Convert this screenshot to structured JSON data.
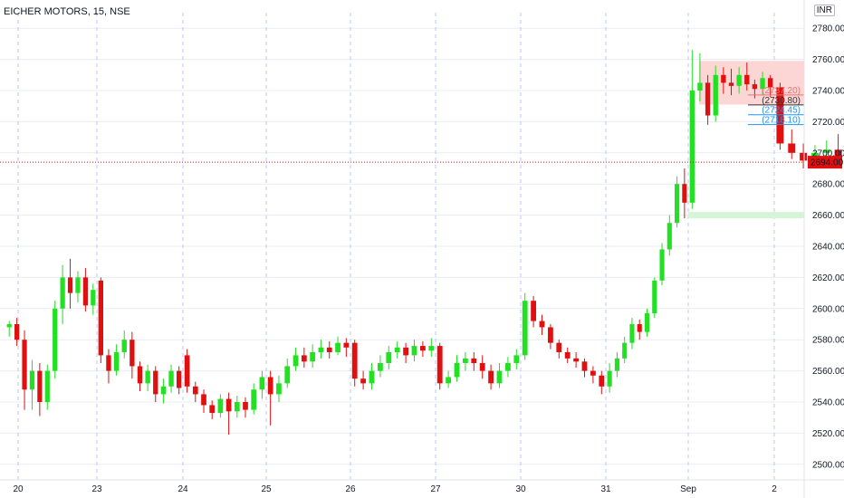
{
  "header": {
    "title": "EICHER MOTORS, 15, NSE",
    "currency": "INR"
  },
  "chart_data": {
    "type": "candlestick",
    "ylim": [
      2490,
      2790
    ],
    "yticks": [
      2500,
      2520,
      2540,
      2560,
      2580,
      2600,
      2620,
      2640,
      2660,
      2680,
      2700,
      2720,
      2740,
      2760,
      2780
    ],
    "xticks": [
      "20",
      "23",
      "24",
      "25",
      "26",
      "27",
      "30",
      "31",
      "Sep",
      "2"
    ],
    "last_price": 2694.0,
    "last_price_label": "2694.00",
    "colors": {
      "up": "#22e022",
      "down": "#e01010",
      "grid": "#e9ecf2",
      "day_sep": "#b8c4ff",
      "price_line": "#e01010"
    },
    "zones": [
      {
        "kind": "supply",
        "from": 2731,
        "to": 2759,
        "color": "#fcd5d5"
      },
      {
        "kind": "demand",
        "from": 2658,
        "to": 2662,
        "color": "#d6f5d6"
      }
    ],
    "levels": [
      {
        "label": "(2737.20)",
        "value": 2737.2,
        "color": "#e57373"
      },
      {
        "label": "(2730.80)",
        "value": 2730.8,
        "color": "#333333"
      },
      {
        "label": "(2724.45)",
        "value": 2724.45,
        "color": "#2196f3"
      },
      {
        "label": "(2718.10)",
        "value": 2718.1,
        "color": "#2196f3"
      }
    ],
    "days": [
      {
        "label": "20",
        "candles": [
          [
            2588,
            2590,
            2582,
            2592
          ],
          [
            2590,
            2580,
            2576,
            2594
          ],
          [
            2580,
            2548,
            2535,
            2586
          ],
          [
            2548,
            2560,
            2535,
            2567
          ],
          [
            2560,
            2540,
            2531,
            2565
          ],
          [
            2540,
            2560,
            2535,
            2564
          ],
          [
            2560,
            2600,
            2555,
            2605
          ],
          [
            2600,
            2620,
            2590,
            2628
          ],
          [
            2620,
            2610,
            2600,
            2632
          ],
          [
            2610,
            2620,
            2604,
            2624
          ],
          [
            2620,
            2602,
            2598,
            2626
          ],
          [
            2602,
            2612,
            2596,
            2616
          ]
        ]
      },
      {
        "label": "23",
        "candles": [
          [
            2618,
            2570,
            2565,
            2620
          ],
          [
            2570,
            2560,
            2552,
            2574
          ],
          [
            2560,
            2572,
            2557,
            2577
          ],
          [
            2572,
            2580,
            2568,
            2586
          ],
          [
            2580,
            2563,
            2555,
            2585
          ],
          [
            2563,
            2552,
            2547,
            2566
          ],
          [
            2552,
            2560,
            2547,
            2564
          ],
          [
            2560,
            2545,
            2540,
            2563
          ],
          [
            2545,
            2550,
            2539,
            2555
          ],
          [
            2550,
            2560,
            2546,
            2564
          ],
          [
            2560,
            2549,
            2545,
            2563
          ]
        ]
      },
      {
        "label": "24",
        "candles": [
          [
            2570,
            2550,
            2546,
            2574
          ],
          [
            2550,
            2545,
            2540,
            2553
          ],
          [
            2545,
            2538,
            2533,
            2548
          ],
          [
            2538,
            2533,
            2529,
            2541
          ],
          [
            2533,
            2542,
            2530,
            2545
          ],
          [
            2542,
            2534,
            2519,
            2546
          ],
          [
            2534,
            2540,
            2530,
            2544
          ],
          [
            2540,
            2535,
            2530,
            2543
          ],
          [
            2535,
            2548,
            2532,
            2552
          ],
          [
            2548,
            2556,
            2542,
            2560
          ]
        ]
      },
      {
        "label": "25",
        "candles": [
          [
            2556,
            2545,
            2525,
            2560
          ],
          [
            2545,
            2552,
            2540,
            2557
          ],
          [
            2552,
            2563,
            2549,
            2568
          ],
          [
            2563,
            2570,
            2560,
            2575
          ],
          [
            2570,
            2566,
            2562,
            2575
          ],
          [
            2566,
            2572,
            2562,
            2577
          ],
          [
            2572,
            2575,
            2568,
            2580
          ],
          [
            2575,
            2572,
            2568,
            2579
          ],
          [
            2572,
            2578,
            2570,
            2582
          ],
          [
            2578,
            2575,
            2569,
            2581
          ]
        ]
      },
      {
        "label": "26",
        "candles": [
          [
            2578,
            2555,
            2550,
            2580
          ],
          [
            2555,
            2552,
            2548,
            2560
          ],
          [
            2552,
            2560,
            2548,
            2565
          ],
          [
            2560,
            2565,
            2556,
            2570
          ],
          [
            2565,
            2572,
            2561,
            2576
          ],
          [
            2572,
            2575,
            2568,
            2579
          ],
          [
            2575,
            2570,
            2565,
            2578
          ],
          [
            2570,
            2576,
            2566,
            2580
          ],
          [
            2576,
            2573,
            2569,
            2579
          ],
          [
            2573,
            2576,
            2569,
            2581
          ]
        ]
      },
      {
        "label": "27",
        "candles": [
          [
            2576,
            2552,
            2548,
            2578
          ],
          [
            2552,
            2556,
            2549,
            2560
          ],
          [
            2556,
            2565,
            2553,
            2570
          ],
          [
            2565,
            2568,
            2560,
            2572
          ],
          [
            2568,
            2565,
            2560,
            2572
          ],
          [
            2565,
            2560,
            2555,
            2570
          ],
          [
            2560,
            2552,
            2548,
            2564
          ],
          [
            2552,
            2560,
            2549,
            2565
          ],
          [
            2560,
            2565,
            2556,
            2569
          ],
          [
            2565,
            2570,
            2561,
            2574
          ]
        ]
      },
      {
        "label": "30",
        "candles": [
          [
            2570,
            2605,
            2567,
            2610
          ],
          [
            2605,
            2592,
            2588,
            2608
          ],
          [
            2592,
            2588,
            2583,
            2596
          ],
          [
            2588,
            2578,
            2574,
            2590
          ],
          [
            2578,
            2572,
            2568,
            2580
          ],
          [
            2572,
            2568,
            2565,
            2575
          ],
          [
            2568,
            2566,
            2562,
            2572
          ],
          [
            2566,
            2560,
            2556,
            2568
          ],
          [
            2560,
            2557,
            2552,
            2563
          ],
          [
            2557,
            2550,
            2545,
            2560
          ]
        ]
      },
      {
        "label": "31",
        "candles": [
          [
            2550,
            2560,
            2546,
            2565
          ],
          [
            2560,
            2568,
            2556,
            2572
          ],
          [
            2568,
            2578,
            2565,
            2582
          ],
          [
            2578,
            2590,
            2574,
            2594
          ],
          [
            2590,
            2585,
            2580,
            2593
          ],
          [
            2585,
            2597,
            2582,
            2600
          ],
          [
            2597,
            2618,
            2594,
            2620
          ],
          [
            2618,
            2638,
            2615,
            2642
          ],
          [
            2638,
            2655,
            2634,
            2660
          ],
          [
            2655,
            2680,
            2652,
            2685
          ],
          [
            2680,
            2668,
            2658,
            2690
          ]
        ]
      },
      {
        "label": "Sep",
        "candles": [
          [
            2668,
            2740,
            2664,
            2766
          ],
          [
            2740,
            2745,
            2733,
            2764
          ],
          [
            2745,
            2724,
            2718,
            2750
          ],
          [
            2724,
            2750,
            2720,
            2756
          ],
          [
            2750,
            2745,
            2738,
            2755
          ],
          [
            2745,
            2743,
            2737,
            2754
          ],
          [
            2743,
            2750,
            2738,
            2755
          ],
          [
            2750,
            2744,
            2740,
            2758
          ],
          [
            2744,
            2741,
            2735,
            2747
          ],
          [
            2741,
            2748,
            2737,
            2752
          ],
          [
            2748,
            2742,
            2736,
            2750
          ]
        ]
      },
      {
        "label": "2",
        "candles": [
          [
            2742,
            2706,
            2702,
            2745
          ],
          [
            2706,
            2700,
            2696,
            2715
          ],
          [
            2700,
            2695,
            2690,
            2706
          ],
          [
            2695,
            2700,
            2691,
            2705
          ],
          [
            2700,
            2702,
            2695,
            2708
          ],
          [
            2702,
            2694,
            2690,
            2712
          ]
        ]
      }
    ]
  }
}
